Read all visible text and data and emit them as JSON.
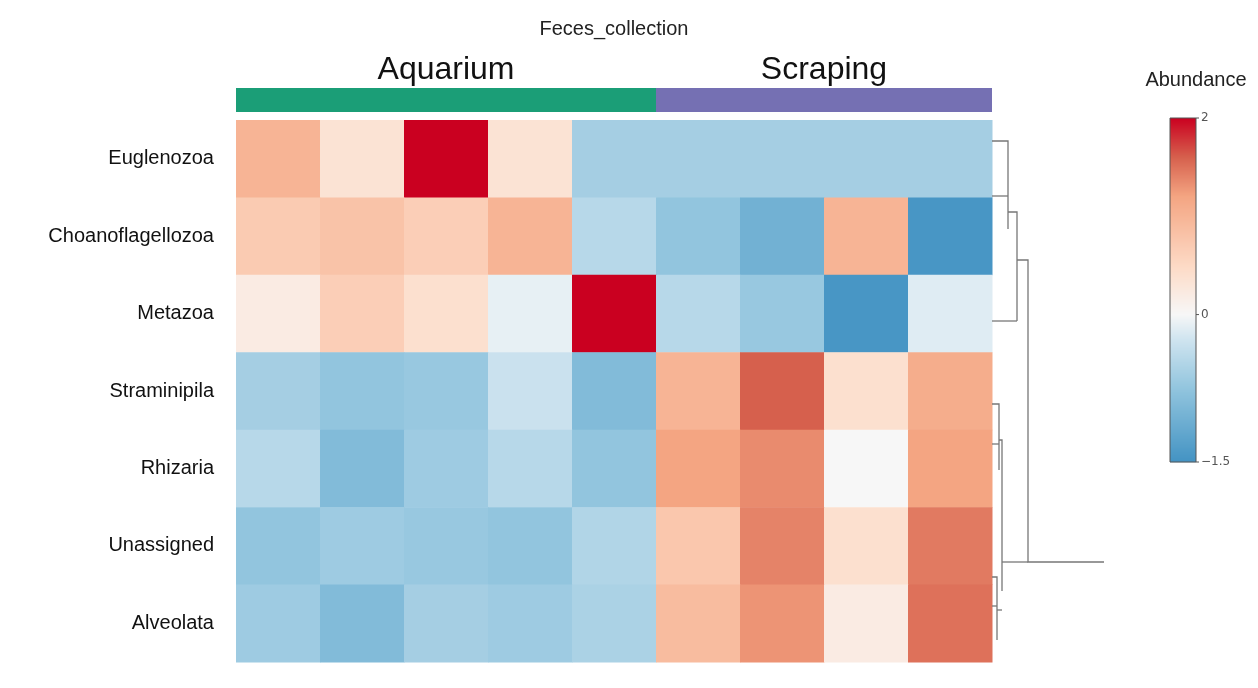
{
  "chart_data": {
    "type": "heatmap",
    "title": "Feces_collection",
    "annotations": [
      "Aquarium",
      "Scraping"
    ],
    "categories": [
      null,
      null,
      null,
      null,
      null,
      null,
      null,
      null,
      null
    ],
    "y_categories": [
      "Euglenozoa",
      "Choanoflagellozoa",
      "Metazoa",
      "Straminipila",
      "Rhizaria",
      "Unassigned",
      "Alveolata"
    ],
    "cells": [
      [
        1.0,
        0.35,
        2,
        0.35,
        -0.6,
        -0.6,
        -0.6,
        -0.6,
        -0.6
      ],
      [
        0.7,
        0.8,
        0.65,
        1.0,
        -0.45,
        -0.75,
        -1.05,
        1.0,
        -1.45
      ],
      [
        0.2,
        0.65,
        0.4,
        -0.1,
        2,
        -0.45,
        -0.7,
        -1.45,
        -0.15
      ],
      [
        -0.6,
        -0.75,
        -0.7,
        -0.3,
        -0.9,
        1.0,
        1.6,
        0.4,
        1.1
      ],
      [
        -0.45,
        -0.9,
        -0.65,
        -0.45,
        -0.75,
        1.2,
        1.35,
        0,
        1.2
      ],
      [
        -0.75,
        -0.65,
        -0.7,
        -0.75,
        -0.5,
        0.75,
        1.4,
        0.4,
        1.45
      ],
      [
        -0.65,
        -0.9,
        -0.6,
        -0.65,
        -0.55,
        0.9,
        1.3,
        0.2,
        1.5
      ]
    ],
    "clabel": "Abundance",
    "clim": [
      -1.5,
      2
    ],
    "cticks": [
      {
        "value": -1.5,
        "label": "−1.5"
      },
      0,
      2
    ]
  }
}
